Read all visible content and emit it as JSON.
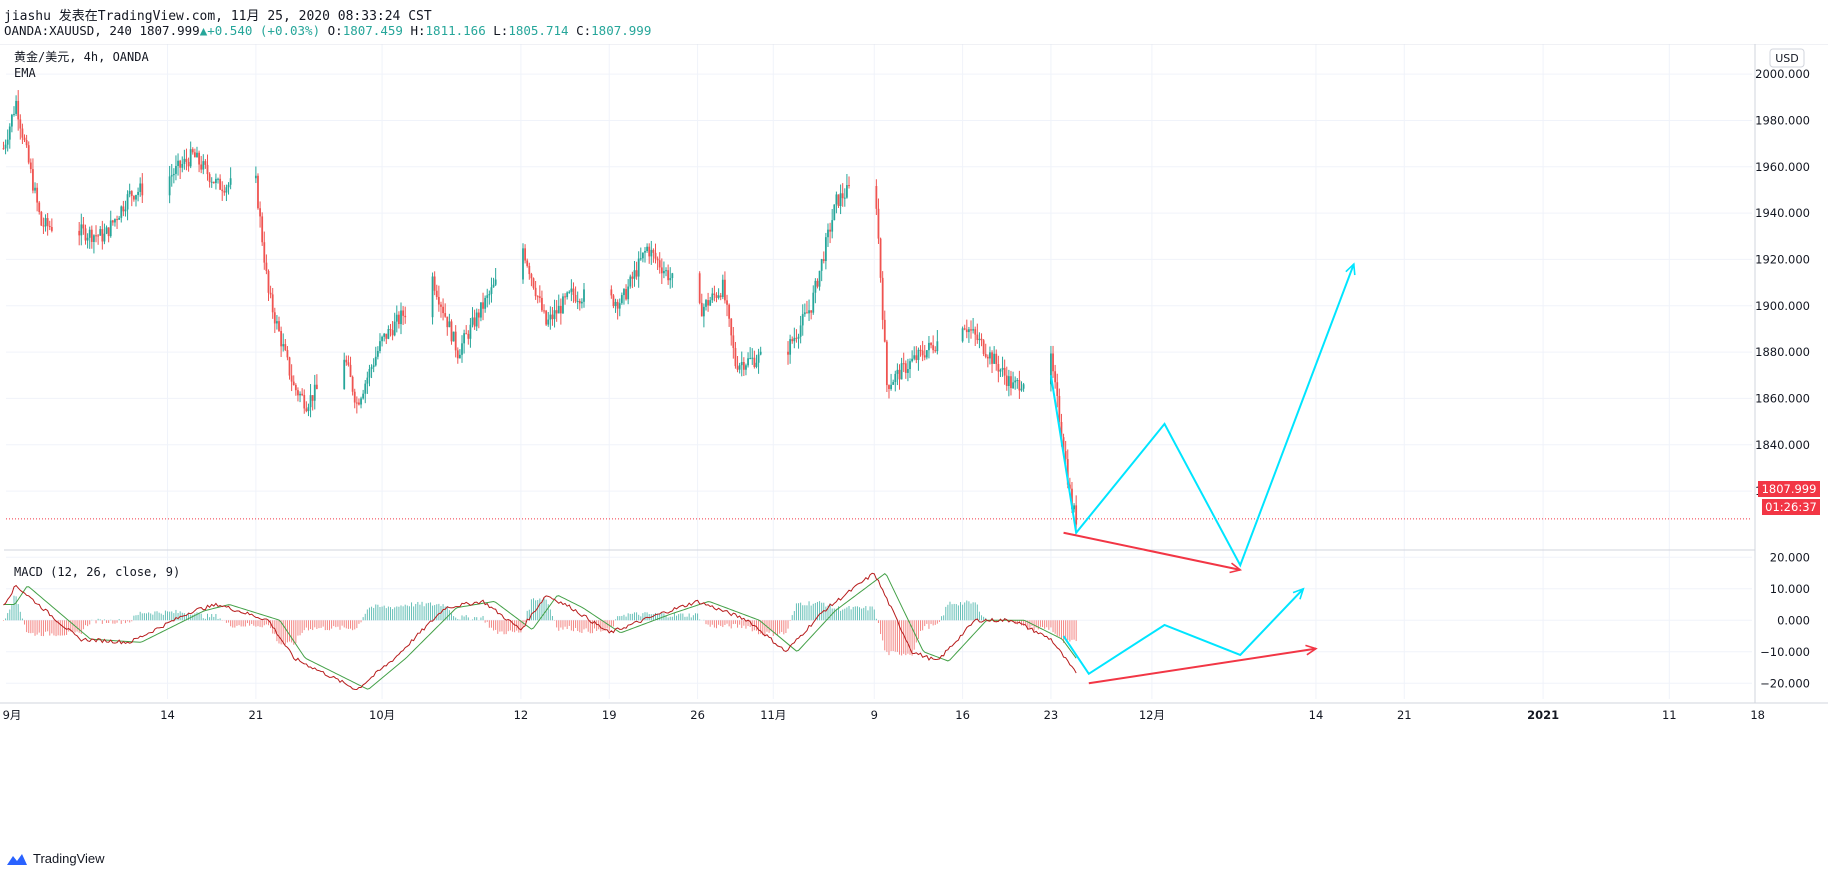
{
  "header": {
    "author_line": "jiashu 发表在TradingView.com, 11月 25, 2020 08:33:24 CST",
    "symbol_interval": "OANDA:XAUUSD, 240",
    "last": "1807.999",
    "change": "+0.540 (+0.03%)",
    "o_label": "O:",
    "o_value": "1807.459",
    "h_label": "H:",
    "h_value": "1811.166",
    "l_label": "L:",
    "l_value": "1805.714",
    "c_label": "C:",
    "c_value": "1807.999"
  },
  "legend": {
    "title": "黄金/美元, 4h, OANDA",
    "indicator": "EMA",
    "macd_title": "MACD (12, 26, close, 9)",
    "currency": "USD"
  },
  "price_label": "1807.999",
  "countdown": "01:26:37",
  "footer": {
    "brand": "TradingView"
  },
  "colors": {
    "up": "#26a69a",
    "down": "#ef5350",
    "cyan": "#00e5ff",
    "drawing_red": "#f23645",
    "macd": "#b71c1c",
    "signal": "#43a047"
  },
  "chart_data": {
    "type": "candlestick",
    "instrument": "OANDA:XAUUSD",
    "interval": "4h",
    "x_ticks": [
      "9月",
      "14",
      "21",
      "10月",
      "12",
      "19",
      "26",
      "11月",
      "9",
      "16",
      "23",
      "12月",
      "14",
      "21",
      "2021",
      "11",
      "18"
    ],
    "price_axis": {
      "ticks": [
        2000,
        1980,
        1960,
        1940,
        1920,
        1900,
        1880,
        1860,
        1840,
        1820
      ],
      "ylim": [
        1795,
        2013
      ]
    },
    "macd_axis": {
      "ticks": [
        20,
        10,
        0,
        -10,
        -20
      ],
      "ylim": [
        -25,
        22
      ]
    },
    "price_path_key_points": [
      {
        "date": "Sep 1",
        "price": 1968
      },
      {
        "date": "Sep 2",
        "price": 1988
      },
      {
        "date": "Sep 4",
        "price": 1935
      },
      {
        "date": "Sep 9",
        "price": 1930
      },
      {
        "date": "Sep 11",
        "price": 1948
      },
      {
        "date": "Sep 14",
        "price": 1955
      },
      {
        "date": "Sep 16",
        "price": 1965
      },
      {
        "date": "Sep 18",
        "price": 1952
      },
      {
        "date": "Sep 21",
        "price": 1953
      },
      {
        "date": "Sep 22",
        "price": 1905
      },
      {
        "date": "Sep 24",
        "price": 1865
      },
      {
        "date": "Sep 25",
        "price": 1858
      },
      {
        "date": "Sep 28",
        "price": 1878
      },
      {
        "date": "Sep 29",
        "price": 1858
      },
      {
        "date": "Oct 1",
        "price": 1885
      },
      {
        "date": "Oct 5",
        "price": 1912
      },
      {
        "date": "Oct 7",
        "price": 1880
      },
      {
        "date": "Oct 9",
        "price": 1900
      },
      {
        "date": "Oct 12",
        "price": 1928
      },
      {
        "date": "Oct 14",
        "price": 1892
      },
      {
        "date": "Oct 16",
        "price": 1905
      },
      {
        "date": "Oct 20",
        "price": 1902
      },
      {
        "date": "Oct 22",
        "price": 1925
      },
      {
        "date": "Oct 26",
        "price": 1897
      },
      {
        "date": "Oct 28",
        "price": 1908
      },
      {
        "date": "Oct 29",
        "price": 1875
      },
      {
        "date": "Nov 2",
        "price": 1880
      },
      {
        "date": "Nov 4",
        "price": 1900
      },
      {
        "date": "Nov 6",
        "price": 1945
      },
      {
        "date": "Nov 9",
        "price": 1960
      },
      {
        "date": "Nov 10",
        "price": 1866
      },
      {
        "date": "Nov 12",
        "price": 1876
      },
      {
        "date": "Nov 16",
        "price": 1893
      },
      {
        "date": "Nov 18",
        "price": 1880
      },
      {
        "date": "Nov 20",
        "price": 1865
      },
      {
        "date": "Nov 23",
        "price": 1876
      },
      {
        "date": "Nov 24",
        "price": 1840
      },
      {
        "date": "Nov 24 late",
        "price": 1815
      },
      {
        "date": "Nov 25",
        "price": 1808
      }
    ],
    "projection_price": [
      {
        "date": "Nov 23",
        "price": 1870
      },
      {
        "date": "Nov 25",
        "price": 1802
      },
      {
        "date": "Dec 2",
        "price": 1849
      },
      {
        "date": "Dec 8",
        "price": 1788
      },
      {
        "date": "Dec 17",
        "price": 1918
      }
    ],
    "support_line_price": [
      {
        "date": "Nov 24",
        "price": 1802
      },
      {
        "date": "Dec 8",
        "price": 1786
      }
    ],
    "projection_macd": [
      {
        "date": "Nov 24",
        "value": -5
      },
      {
        "date": "Nov 26",
        "value": -17
      },
      {
        "date": "Dec 2",
        "value": -1.5
      },
      {
        "date": "Dec 8",
        "value": -11
      },
      {
        "date": "Dec 13",
        "value": 10
      }
    ],
    "macd_trend_line": [
      {
        "date": "Nov 26",
        "value": -20
      },
      {
        "date": "Dec 14",
        "value": -9
      }
    ],
    "macd_path_key_points": [
      {
        "date": "Sep 1",
        "value": 5
      },
      {
        "date": "Sep 2",
        "value": 11
      },
      {
        "date": "Sep 7",
        "value": -6
      },
      {
        "date": "Sep 11",
        "value": -7
      },
      {
        "date": "Sep 16",
        "value": 3
      },
      {
        "date": "Sep 18",
        "value": 5
      },
      {
        "date": "Sep 22",
        "value": 0
      },
      {
        "date": "Sep 24",
        "value": -12
      },
      {
        "date": "Sep 29",
        "value": -22
      },
      {
        "date": "Oct 2",
        "value": -12
      },
      {
        "date": "Oct 6",
        "value": 4
      },
      {
        "date": "Oct 9",
        "value": 6
      },
      {
        "date": "Oct 12",
        "value": -3
      },
      {
        "date": "Oct 14",
        "value": 8
      },
      {
        "date": "Oct 16",
        "value": 4
      },
      {
        "date": "Oct 19",
        "value": -4
      },
      {
        "date": "Oct 23",
        "value": 2
      },
      {
        "date": "Oct 26",
        "value": 6
      },
      {
        "date": "Oct 30",
        "value": 0
      },
      {
        "date": "Nov 2",
        "value": -10
      },
      {
        "date": "Nov 5",
        "value": 3
      },
      {
        "date": "Nov 9",
        "value": 15
      },
      {
        "date": "Nov 12",
        "value": -10
      },
      {
        "date": "Nov 14",
        "value": -13
      },
      {
        "date": "Nov 17",
        "value": 0
      },
      {
        "date": "Nov 20",
        "value": 0
      },
      {
        "date": "Nov 23",
        "value": -6
      },
      {
        "date": "Nov 25",
        "value": -17
      }
    ]
  }
}
